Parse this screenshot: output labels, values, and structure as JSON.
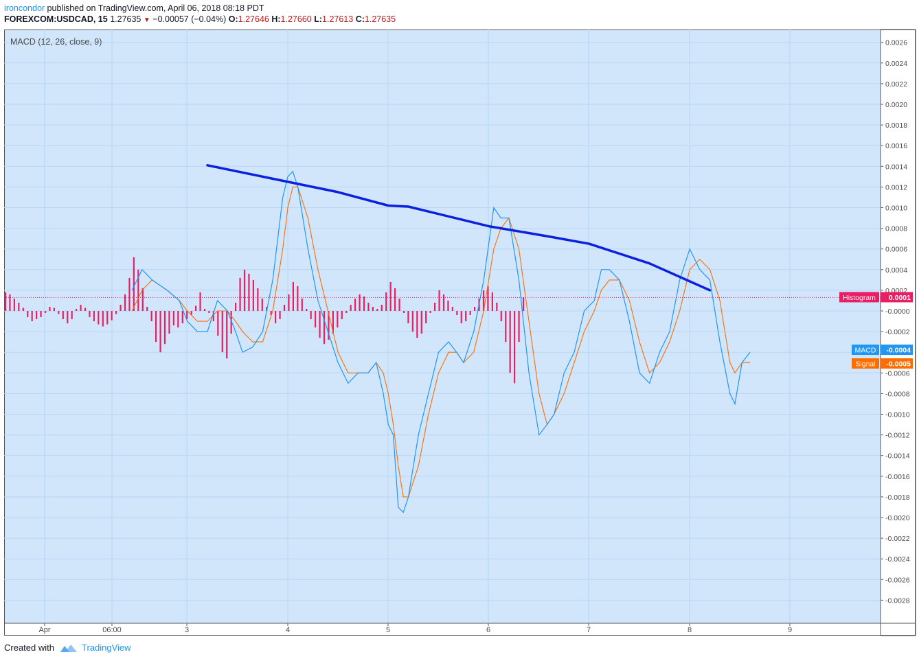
{
  "header": {
    "author": "ironcondor",
    "published": " published on TradingView.com, April 06, 2018 08:18 PDT",
    "symbol": "FOREXCOM:USDCAD, 15",
    "price": "1.27635",
    "change": "−0.00057 (−0.04%)",
    "o_label": "O:",
    "o_value": "1.27646",
    "h_label": "H:",
    "h_value": "1.27660",
    "l_label": "L:",
    "l_value": "1.27613",
    "c_label": "C:",
    "c_value": "1.27635"
  },
  "footer": {
    "created_with": "Created with",
    "brand": "TradingView"
  },
  "colors": {
    "pane_bg": "#d1e6fb",
    "grid": "#b9d6f5",
    "macd": "#2196f3",
    "signal": "#ff6d00",
    "histogram": "#e91e63",
    "trendline": "#0a22e0",
    "axis_text": "#4a4a4a"
  },
  "chart_data": {
    "type": "line",
    "title": "MACD (12, 26, close, 9)",
    "x_ticks": [
      "Apr",
      "06:00",
      "3",
      "4",
      "5",
      "6",
      "7",
      "8",
      "9"
    ],
    "y_ticks": [
      "0.0026",
      "0.0024",
      "0.0022",
      "0.0020",
      "0.0018",
      "0.0016",
      "0.0014",
      "0.0012",
      "0.0010",
      "0.0008",
      "0.0006",
      "0.0004",
      "0.0002",
      "-0.0000",
      "-0.0002",
      "-0.0004",
      "-0.0006",
      "-0.0008",
      "-0.0010",
      "-0.0012",
      "-0.0014",
      "-0.0016",
      "-0.0018",
      "-0.0020",
      "-0.0022",
      "-0.0024",
      "-0.0026",
      "-0.0028"
    ],
    "ylim": [
      -0.003,
      0.0027
    ],
    "xlim": [
      -0.55,
      7.53
    ],
    "grid": true,
    "labels": {
      "histogram": {
        "name": "Histogram",
        "value": "0.0001"
      },
      "macd": {
        "name": "MACD",
        "value": "-0.0004"
      },
      "signal": {
        "name": "Signal",
        "value": "-0.0005"
      }
    },
    "histogram_last": 0.00013,
    "trendline": [
      [
        0.2,
        0.00141
      ],
      [
        1.5,
        0.00115
      ],
      [
        2.0,
        0.00102
      ],
      [
        2.2,
        0.00101
      ],
      [
        3.0,
        0.00082
      ],
      [
        3.6,
        0.00072
      ],
      [
        4.0,
        0.00065
      ],
      [
        4.6,
        0.00046
      ],
      [
        5.2,
        0.0002
      ]
    ],
    "macd_points": [
      [
        -0.55,
        0.0002
      ],
      [
        -0.45,
        0.0004
      ],
      [
        -0.35,
        0.0003
      ],
      [
        -0.2,
        0.0002
      ],
      [
        -0.08,
        0.0001
      ],
      [
        0.0,
        -0.0001
      ],
      [
        0.1,
        -0.0002
      ],
      [
        0.2,
        -0.0002
      ],
      [
        0.3,
        0.0001
      ],
      [
        0.4,
        0.0
      ],
      [
        0.48,
        -0.0002
      ],
      [
        0.55,
        -0.0004
      ],
      [
        0.65,
        -0.00035
      ],
      [
        0.75,
        -0.0002
      ],
      [
        0.85,
        0.0003
      ],
      [
        0.95,
        0.0011
      ],
      [
        1.0,
        0.0013
      ],
      [
        1.05,
        0.00135
      ],
      [
        1.1,
        0.0012
      ],
      [
        1.2,
        0.0006
      ],
      [
        1.3,
        0.0001
      ],
      [
        1.4,
        -0.0002
      ],
      [
        1.5,
        -0.0005
      ],
      [
        1.6,
        -0.0007
      ],
      [
        1.7,
        -0.0006
      ],
      [
        1.8,
        -0.0006
      ],
      [
        1.88,
        -0.0005
      ],
      [
        1.95,
        -0.0008
      ],
      [
        2.0,
        -0.0011
      ],
      [
        2.05,
        -0.0012
      ],
      [
        2.1,
        -0.0019
      ],
      [
        2.15,
        -0.00195
      ],
      [
        2.2,
        -0.0018
      ],
      [
        2.3,
        -0.0012
      ],
      [
        2.4,
        -0.0008
      ],
      [
        2.5,
        -0.0004
      ],
      [
        2.6,
        -0.0003
      ],
      [
        2.68,
        -0.0004
      ],
      [
        2.75,
        -0.0005
      ],
      [
        2.85,
        -0.0002
      ],
      [
        2.95,
        0.0003
      ],
      [
        3.05,
        0.001
      ],
      [
        3.12,
        0.0009
      ],
      [
        3.2,
        0.0009
      ],
      [
        3.3,
        0.0003
      ],
      [
        3.4,
        -0.0006
      ],
      [
        3.5,
        -0.0012
      ],
      [
        3.58,
        -0.0011
      ],
      [
        3.65,
        -0.001
      ],
      [
        3.75,
        -0.0006
      ],
      [
        3.85,
        -0.0004
      ],
      [
        3.95,
        0.0
      ],
      [
        4.05,
        0.0001
      ],
      [
        4.12,
        0.0004
      ],
      [
        4.2,
        0.0004
      ],
      [
        4.3,
        0.0003
      ],
      [
        4.4,
        -0.0001
      ],
      [
        4.5,
        -0.0006
      ],
      [
        4.6,
        -0.0007
      ],
      [
        4.7,
        -0.0004
      ],
      [
        4.8,
        -0.0002
      ],
      [
        4.9,
        0.0003
      ],
      [
        5.0,
        0.0006
      ],
      [
        5.1,
        0.0004
      ],
      [
        5.2,
        0.0003
      ],
      [
        5.3,
        -0.0003
      ],
      [
        5.4,
        -0.0008
      ],
      [
        5.45,
        -0.0009
      ],
      [
        5.52,
        -0.0005
      ],
      [
        5.6,
        -0.0004
      ]
    ],
    "signal_points": [
      [
        -0.55,
        0.0
      ],
      [
        -0.45,
        0.0002
      ],
      [
        -0.35,
        0.0003
      ],
      [
        -0.2,
        0.0002
      ],
      [
        -0.08,
        0.0001
      ],
      [
        0.0,
        0.0
      ],
      [
        0.1,
        -0.0001
      ],
      [
        0.2,
        -0.0001
      ],
      [
        0.3,
        0.0
      ],
      [
        0.4,
        0.0
      ],
      [
        0.48,
        -0.0001
      ],
      [
        0.55,
        -0.0002
      ],
      [
        0.65,
        -0.0003
      ],
      [
        0.75,
        -0.0003
      ],
      [
        0.85,
        0.0
      ],
      [
        0.95,
        0.0006
      ],
      [
        1.0,
        0.001
      ],
      [
        1.05,
        0.0012
      ],
      [
        1.1,
        0.0012
      ],
      [
        1.2,
        0.0009
      ],
      [
        1.3,
        0.0004
      ],
      [
        1.4,
        0.0
      ],
      [
        1.5,
        -0.0004
      ],
      [
        1.6,
        -0.0006
      ],
      [
        1.7,
        -0.0006
      ],
      [
        1.8,
        -0.0006
      ],
      [
        1.88,
        -0.0005
      ],
      [
        1.95,
        -0.0006
      ],
      [
        2.0,
        -0.0008
      ],
      [
        2.05,
        -0.0011
      ],
      [
        2.1,
        -0.0015
      ],
      [
        2.15,
        -0.0018
      ],
      [
        2.2,
        -0.0018
      ],
      [
        2.3,
        -0.0015
      ],
      [
        2.4,
        -0.001
      ],
      [
        2.5,
        -0.0006
      ],
      [
        2.6,
        -0.0004
      ],
      [
        2.68,
        -0.0004
      ],
      [
        2.75,
        -0.0005
      ],
      [
        2.85,
        -0.0004
      ],
      [
        2.95,
        0.0
      ],
      [
        3.05,
        0.0006
      ],
      [
        3.12,
        0.0008
      ],
      [
        3.2,
        0.0009
      ],
      [
        3.3,
        0.0006
      ],
      [
        3.4,
        -0.0001
      ],
      [
        3.5,
        -0.0008
      ],
      [
        3.58,
        -0.0011
      ],
      [
        3.65,
        -0.001
      ],
      [
        3.75,
        -0.0008
      ],
      [
        3.85,
        -0.0005
      ],
      [
        3.95,
        -0.0002
      ],
      [
        4.05,
        0.0
      ],
      [
        4.12,
        0.0002
      ],
      [
        4.2,
        0.0003
      ],
      [
        4.3,
        0.0003
      ],
      [
        4.4,
        0.0001
      ],
      [
        4.5,
        -0.0003
      ],
      [
        4.6,
        -0.0006
      ],
      [
        4.7,
        -0.0005
      ],
      [
        4.8,
        -0.0003
      ],
      [
        4.9,
        0.0
      ],
      [
        5.0,
        0.0004
      ],
      [
        5.1,
        0.0005
      ],
      [
        5.2,
        0.0004
      ],
      [
        5.3,
        0.0001
      ],
      [
        5.4,
        -0.0005
      ],
      [
        5.45,
        -0.0006
      ],
      [
        5.52,
        -0.0005
      ],
      [
        5.6,
        -0.0005
      ]
    ],
    "histogram_values": [
      0.00018,
      0.00016,
      0.00012,
      8e-05,
      3e-05,
      -6e-05,
      -0.0001,
      -8e-05,
      -6e-05,
      -2e-05,
      4e-05,
      3e-05,
      -3e-05,
      -8e-05,
      -0.00012,
      -8e-05,
      2e-05,
      6e-05,
      3e-05,
      -6e-05,
      -0.0001,
      -0.00013,
      -0.00015,
      -0.00013,
      -9e-05,
      -3e-05,
      6e-05,
      0.00016,
      0.00032,
      0.00052,
      0.0004,
      0.00022,
      4e-05,
      -0.0001,
      -0.0003,
      -0.0004,
      -0.00032,
      -0.00022,
      -0.00014,
      -0.00016,
      -0.00012,
      -8e-05,
      -4e-05,
      5e-05,
      0.00018,
      2e-05,
      -2e-05,
      -0.0001,
      -0.00024,
      -0.0004,
      -0.00046,
      -0.00022,
      8e-05,
      0.00032,
      0.0004,
      0.00036,
      0.0003,
      0.00022,
      0.00012,
      4e-05,
      -4e-05,
      -0.00012,
      -8e-05,
      6e-05,
      0.00016,
      0.00028,
      0.00024,
      0.00012,
      2e-05,
      -8e-05,
      -0.00016,
      -0.00026,
      -0.00032,
      -0.00028,
      -0.00022,
      -0.00016,
      -8e-05,
      -2e-05,
      6e-05,
      0.00012,
      0.00016,
      0.00014,
      8e-05,
      4e-05,
      2e-05,
      6e-05,
      0.00018,
      0.00028,
      0.00022,
      0.00012,
      -2e-05,
      -0.00012,
      -0.0002,
      -0.00026,
      -0.00022,
      -0.00012,
      -2e-05,
      8e-05,
      0.0002,
      0.00016,
      0.0001,
      4e-05,
      -4e-05,
      -0.00012,
      -0.0001,
      -4e-05,
      4e-05,
      0.00012,
      0.0002,
      0.00024,
      0.00018,
      8e-05,
      -0.0001,
      -0.0003,
      -0.0006,
      -0.0007,
      -0.0003,
      0.00013
    ]
  }
}
